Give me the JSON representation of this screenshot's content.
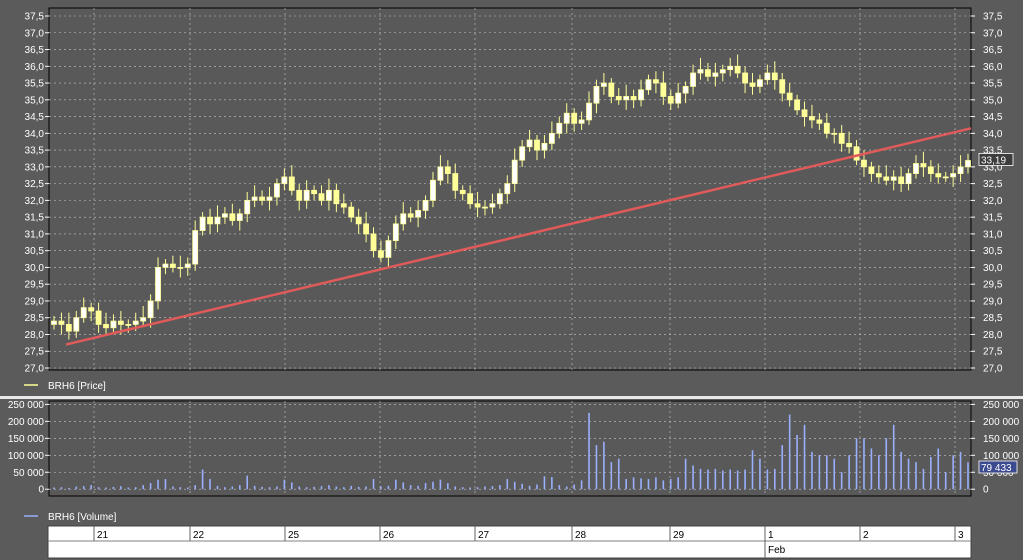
{
  "chart_data": [
    {
      "type": "candlestick",
      "panel": "price",
      "legend": "BRH6 [Price]",
      "ylim": [
        27.0,
        37.5
      ],
      "yticks": [
        "27,0",
        "27,5",
        "28,0",
        "28,5",
        "29,0",
        "29,5",
        "30,0",
        "30,5",
        "31,0",
        "31,5",
        "32,0",
        "32,5",
        "33,0",
        "33,5",
        "34,0",
        "34,5",
        "35,0",
        "35,5",
        "36,0",
        "36,5",
        "37,0",
        "37,5"
      ],
      "last_value_label": "33,19",
      "last_value": 33.19,
      "grid": true,
      "candle_color": "#ffff99",
      "trendline": {
        "color": "#e05a5a",
        "start": 27.7,
        "end": 34.15
      },
      "close": [
        28.4,
        28.3,
        28.1,
        28.5,
        28.8,
        28.7,
        28.3,
        28.2,
        28.4,
        28.3,
        28.3,
        28.4,
        28.5,
        29.0,
        30.0,
        30.1,
        30.0,
        30.0,
        30.1,
        31.1,
        31.5,
        31.3,
        31.5,
        31.6,
        31.4,
        31.6,
        32.0,
        32.1,
        32.0,
        32.1,
        32.5,
        32.7,
        32.3,
        32.0,
        32.3,
        32.2,
        32.0,
        32.3,
        31.9,
        31.8,
        31.5,
        31.3,
        31.0,
        30.5,
        30.3,
        30.8,
        31.3,
        31.6,
        31.5,
        31.7,
        32.0,
        32.6,
        33.0,
        32.8,
        32.3,
        32.2,
        31.9,
        31.8,
        31.8,
        31.9,
        32.2,
        32.5,
        33.2,
        33.6,
        33.8,
        33.5,
        33.7,
        34.0,
        34.3,
        34.6,
        34.3,
        34.4,
        34.9,
        35.4,
        35.5,
        35.1,
        35.0,
        35.1,
        35.0,
        35.3,
        35.6,
        35.5,
        35.1,
        34.9,
        35.2,
        35.4,
        35.8,
        35.9,
        35.7,
        35.8,
        35.9,
        36.0,
        35.8,
        35.5,
        35.4,
        35.6,
        35.8,
        35.6,
        35.2,
        35.0,
        34.7,
        34.5,
        34.4,
        34.3,
        34.0,
        34.0,
        33.7,
        33.6,
        33.2,
        33.0,
        32.8,
        32.7,
        32.6,
        32.7,
        32.5,
        32.8,
        33.1,
        33.0,
        32.8,
        32.7,
        32.7,
        32.8,
        33.0,
        33.19
      ],
      "volume_scale": "reference"
    },
    {
      "type": "bar",
      "panel": "volume",
      "legend": "BRH6 [Volume]",
      "ylim": [
        -20000,
        260000
      ],
      "yticks": [
        "250 000",
        "200 000",
        "150 000",
        "100 000",
        "50 000",
        "0"
      ],
      "ytick_values": [
        250000,
        200000,
        150000,
        100000,
        50000,
        0
      ],
      "last_value_label": "79 433",
      "bar_color": "#9ab0ff",
      "values": [
        5000,
        6000,
        4000,
        8000,
        9000,
        12000,
        6000,
        5000,
        7000,
        9000,
        5000,
        6000,
        12000,
        18000,
        28000,
        30000,
        8000,
        6000,
        5000,
        12000,
        58000,
        30000,
        10000,
        6000,
        8000,
        12000,
        40000,
        10000,
        7000,
        6000,
        8000,
        28000,
        20000,
        8000,
        6000,
        7000,
        9000,
        12000,
        8000,
        6000,
        10000,
        7000,
        8000,
        30000,
        8000,
        10000,
        28000,
        20000,
        12000,
        10000,
        18000,
        22000,
        28000,
        18000,
        8000,
        6000,
        5000,
        6000,
        8000,
        9000,
        12000,
        30000,
        22000,
        16000,
        10000,
        14000,
        38000,
        36000,
        12000,
        8000,
        14000,
        26000,
        225000,
        130000,
        140000,
        80000,
        90000,
        30000,
        35000,
        32000,
        30000,
        35000,
        26000,
        30000,
        35000,
        90000,
        70000,
        60000,
        58000,
        60000,
        55000,
        58000,
        55000,
        58000,
        115000,
        90000,
        58000,
        60000,
        130000,
        220000,
        160000,
        190000,
        110000,
        100000,
        100000,
        90000,
        50000,
        100000,
        150000,
        150000,
        120000,
        100000,
        150000,
        190000,
        110000,
        90000,
        80000,
        60000,
        95000,
        120000,
        50000,
        100000,
        110000,
        79433
      ]
    }
  ],
  "x_axis": {
    "labels": [
      "21",
      "22",
      "25",
      "26",
      "27",
      "28",
      "29",
      "1",
      "2",
      "3"
    ],
    "month_label": "Feb"
  }
}
